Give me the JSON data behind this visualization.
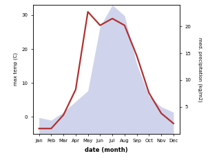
{
  "months": [
    "Jan",
    "Feb",
    "Mar",
    "Apr",
    "May",
    "Jun",
    "Jul",
    "Aug",
    "Sep",
    "Oct",
    "Nov",
    "Dec"
  ],
  "temperature": [
    -3.5,
    -3.5,
    0.5,
    8,
    31,
    27,
    29,
    27,
    18,
    7,
    1,
    -2
  ],
  "precipitation": [
    3,
    2.5,
    4,
    6,
    8,
    20,
    24,
    22,
    13,
    7,
    5,
    4
  ],
  "temp_color": "#b03030",
  "precip_color": "#b0b8e0",
  "precip_fill_alpha": 0.6,
  "temp_ylim": [
    -5,
    33
  ],
  "precip_ylim": [
    0,
    24
  ],
  "temp_yticks": [
    0,
    10,
    20,
    30
  ],
  "precip_yticks": [
    5,
    10,
    15,
    20
  ],
  "ylabel_left": "max temp (C)",
  "ylabel_right": "med. precipitation (kg/m2)",
  "xlabel": "date (month)",
  "background_color": "#ffffff",
  "line_width": 1.6
}
